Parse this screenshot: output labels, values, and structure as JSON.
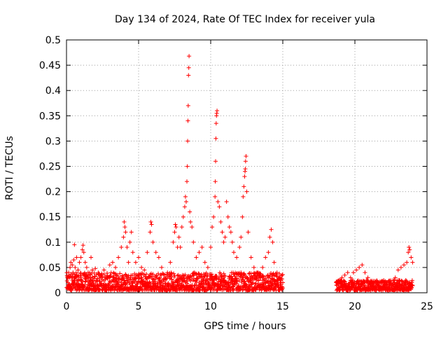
{
  "chart_data": {
    "type": "scatter",
    "title": "Day 134 of 2024, Rate Of TEC Index for receiver yula",
    "xlabel": "GPS time / hours",
    "ylabel": "ROTI / TECUs",
    "xlim": [
      0,
      25
    ],
    "ylim": [
      0,
      0.5
    ],
    "xticks": [
      0,
      5,
      10,
      15,
      20,
      25
    ],
    "yticks": [
      0,
      0.05,
      0.1,
      0.15,
      0.2,
      0.25,
      0.3,
      0.35,
      0.4,
      0.45,
      0.5
    ],
    "xtick_labels": [
      "0",
      "5",
      "10",
      "15",
      "20",
      "25"
    ],
    "ytick_labels": [
      "0",
      "0.05",
      "0.1",
      "0.15",
      "0.2",
      "0.25",
      "0.3",
      "0.35",
      "0.4",
      "0.45",
      "0.5"
    ],
    "grid": true,
    "marker": "plus",
    "marker_color": "#ff0000",
    "series": [
      {
        "name": "ROTI",
        "points": [
          [
            0.1,
            0.02
          ],
          [
            0.15,
            0.04
          ],
          [
            0.2,
            0.03
          ],
          [
            0.25,
            0.05
          ],
          [
            0.3,
            0.06
          ],
          [
            0.35,
            0.03
          ],
          [
            0.4,
            0.055
          ],
          [
            0.45,
            0.04
          ],
          [
            0.5,
            0.065
          ],
          [
            0.55,
            0.095
          ],
          [
            0.6,
            0.05
          ],
          [
            0.7,
            0.07
          ],
          [
            0.8,
            0.045
          ],
          [
            0.9,
            0.06
          ],
          [
            1.0,
            0.07
          ],
          [
            1.1,
            0.085
          ],
          [
            1.15,
            0.094
          ],
          [
            1.2,
            0.08
          ],
          [
            1.3,
            0.06
          ],
          [
            1.4,
            0.05
          ],
          [
            1.5,
            0.04
          ],
          [
            1.6,
            0.035
          ],
          [
            1.7,
            0.07
          ],
          [
            1.8,
            0.045
          ],
          [
            2.0,
            0.048
          ],
          [
            2.2,
            0.04
          ],
          [
            2.4,
            0.035
          ],
          [
            2.6,
            0.045
          ],
          [
            2.8,
            0.03
          ],
          [
            3.0,
            0.055
          ],
          [
            3.2,
            0.06
          ],
          [
            3.4,
            0.05
          ],
          [
            3.6,
            0.07
          ],
          [
            3.8,
            0.09
          ],
          [
            3.95,
            0.11
          ],
          [
            4.0,
            0.14
          ],
          [
            4.05,
            0.13
          ],
          [
            4.1,
            0.12
          ],
          [
            4.2,
            0.09
          ],
          [
            4.3,
            0.06
          ],
          [
            4.4,
            0.1
          ],
          [
            4.5,
            0.12
          ],
          [
            4.6,
            0.08
          ],
          [
            4.8,
            0.06
          ],
          [
            5.0,
            0.07
          ],
          [
            5.2,
            0.05
          ],
          [
            5.4,
            0.045
          ],
          [
            5.6,
            0.08
          ],
          [
            5.8,
            0.12
          ],
          [
            5.85,
            0.14
          ],
          [
            5.9,
            0.135
          ],
          [
            6.0,
            0.1
          ],
          [
            6.2,
            0.08
          ],
          [
            6.4,
            0.07
          ],
          [
            6.6,
            0.05
          ],
          [
            6.8,
            0.035
          ],
          [
            7.0,
            0.04
          ],
          [
            7.2,
            0.06
          ],
          [
            7.4,
            0.1
          ],
          [
            7.5,
            0.12
          ],
          [
            7.55,
            0.135
          ],
          [
            7.6,
            0.13
          ],
          [
            7.7,
            0.09
          ],
          [
            7.8,
            0.11
          ],
          [
            7.9,
            0.09
          ],
          [
            8.0,
            0.13
          ],
          [
            8.1,
            0.15
          ],
          [
            8.2,
            0.17
          ],
          [
            8.25,
            0.19
          ],
          [
            8.3,
            0.18
          ],
          [
            8.35,
            0.22
          ],
          [
            8.38,
            0.25
          ],
          [
            8.4,
            0.3
          ],
          [
            8.42,
            0.34
          ],
          [
            8.44,
            0.37
          ],
          [
            8.46,
            0.43
          ],
          [
            8.48,
            0.445
          ],
          [
            8.5,
            0.468
          ],
          [
            8.55,
            0.16
          ],
          [
            8.6,
            0.14
          ],
          [
            8.7,
            0.13
          ],
          [
            8.8,
            0.1
          ],
          [
            9.0,
            0.07
          ],
          [
            9.2,
            0.08
          ],
          [
            9.4,
            0.09
          ],
          [
            9.6,
            0.06
          ],
          [
            9.8,
            0.05
          ],
          [
            10.0,
            0.09
          ],
          [
            10.1,
            0.13
          ],
          [
            10.2,
            0.15
          ],
          [
            10.3,
            0.19
          ],
          [
            10.32,
            0.22
          ],
          [
            10.34,
            0.26
          ],
          [
            10.36,
            0.305
          ],
          [
            10.38,
            0.335
          ],
          [
            10.4,
            0.35
          ],
          [
            10.42,
            0.355
          ],
          [
            10.44,
            0.36
          ],
          [
            10.5,
            0.18
          ],
          [
            10.6,
            0.17
          ],
          [
            10.7,
            0.14
          ],
          [
            10.8,
            0.12
          ],
          [
            10.9,
            0.1
          ],
          [
            11.0,
            0.11
          ],
          [
            11.1,
            0.18
          ],
          [
            11.2,
            0.15
          ],
          [
            11.3,
            0.13
          ],
          [
            11.4,
            0.12
          ],
          [
            11.5,
            0.1
          ],
          [
            11.6,
            0.08
          ],
          [
            11.8,
            0.07
          ],
          [
            12.0,
            0.09
          ],
          [
            12.1,
            0.11
          ],
          [
            12.2,
            0.15
          ],
          [
            12.25,
            0.19
          ],
          [
            12.3,
            0.21
          ],
          [
            12.35,
            0.23
          ],
          [
            12.38,
            0.24
          ],
          [
            12.4,
            0.245
          ],
          [
            12.42,
            0.26
          ],
          [
            12.45,
            0.27
          ],
          [
            12.5,
            0.2
          ],
          [
            12.6,
            0.12
          ],
          [
            12.8,
            0.07
          ],
          [
            13.0,
            0.05
          ],
          [
            13.2,
            0.04
          ],
          [
            13.4,
            0.035
          ],
          [
            13.6,
            0.05
          ],
          [
            13.8,
            0.07
          ],
          [
            14.0,
            0.08
          ],
          [
            14.1,
            0.11
          ],
          [
            14.2,
            0.125
          ],
          [
            14.3,
            0.1
          ],
          [
            14.4,
            0.06
          ],
          [
            14.6,
            0.04
          ],
          [
            14.8,
            0.03
          ],
          [
            15.0,
            0.02
          ],
          [
            18.7,
            0.02
          ],
          [
            18.9,
            0.025
          ],
          [
            19.1,
            0.03
          ],
          [
            19.3,
            0.035
          ],
          [
            19.5,
            0.04
          ],
          [
            19.7,
            0.03
          ],
          [
            19.9,
            0.04
          ],
          [
            20.1,
            0.045
          ],
          [
            20.3,
            0.05
          ],
          [
            20.5,
            0.055
          ],
          [
            20.7,
            0.04
          ],
          [
            20.9,
            0.03
          ],
          [
            21.2,
            0.02
          ],
          [
            21.6,
            0.02
          ],
          [
            22.0,
            0.02
          ],
          [
            22.4,
            0.02
          ],
          [
            22.8,
            0.03
          ],
          [
            23.0,
            0.045
          ],
          [
            23.2,
            0.05
          ],
          [
            23.4,
            0.055
          ],
          [
            23.6,
            0.06
          ],
          [
            23.7,
            0.08
          ],
          [
            23.75,
            0.09
          ],
          [
            23.8,
            0.085
          ],
          [
            23.9,
            0.07
          ],
          [
            24.0,
            0.06
          ]
        ],
        "baseline_segments": [
          {
            "x_start": 0.0,
            "x_end": 15.0,
            "y_low": 0.005,
            "y_high": 0.04
          },
          {
            "x_start": 18.7,
            "x_end": 24.0,
            "y_low": 0.005,
            "y_high": 0.025
          }
        ]
      }
    ]
  }
}
